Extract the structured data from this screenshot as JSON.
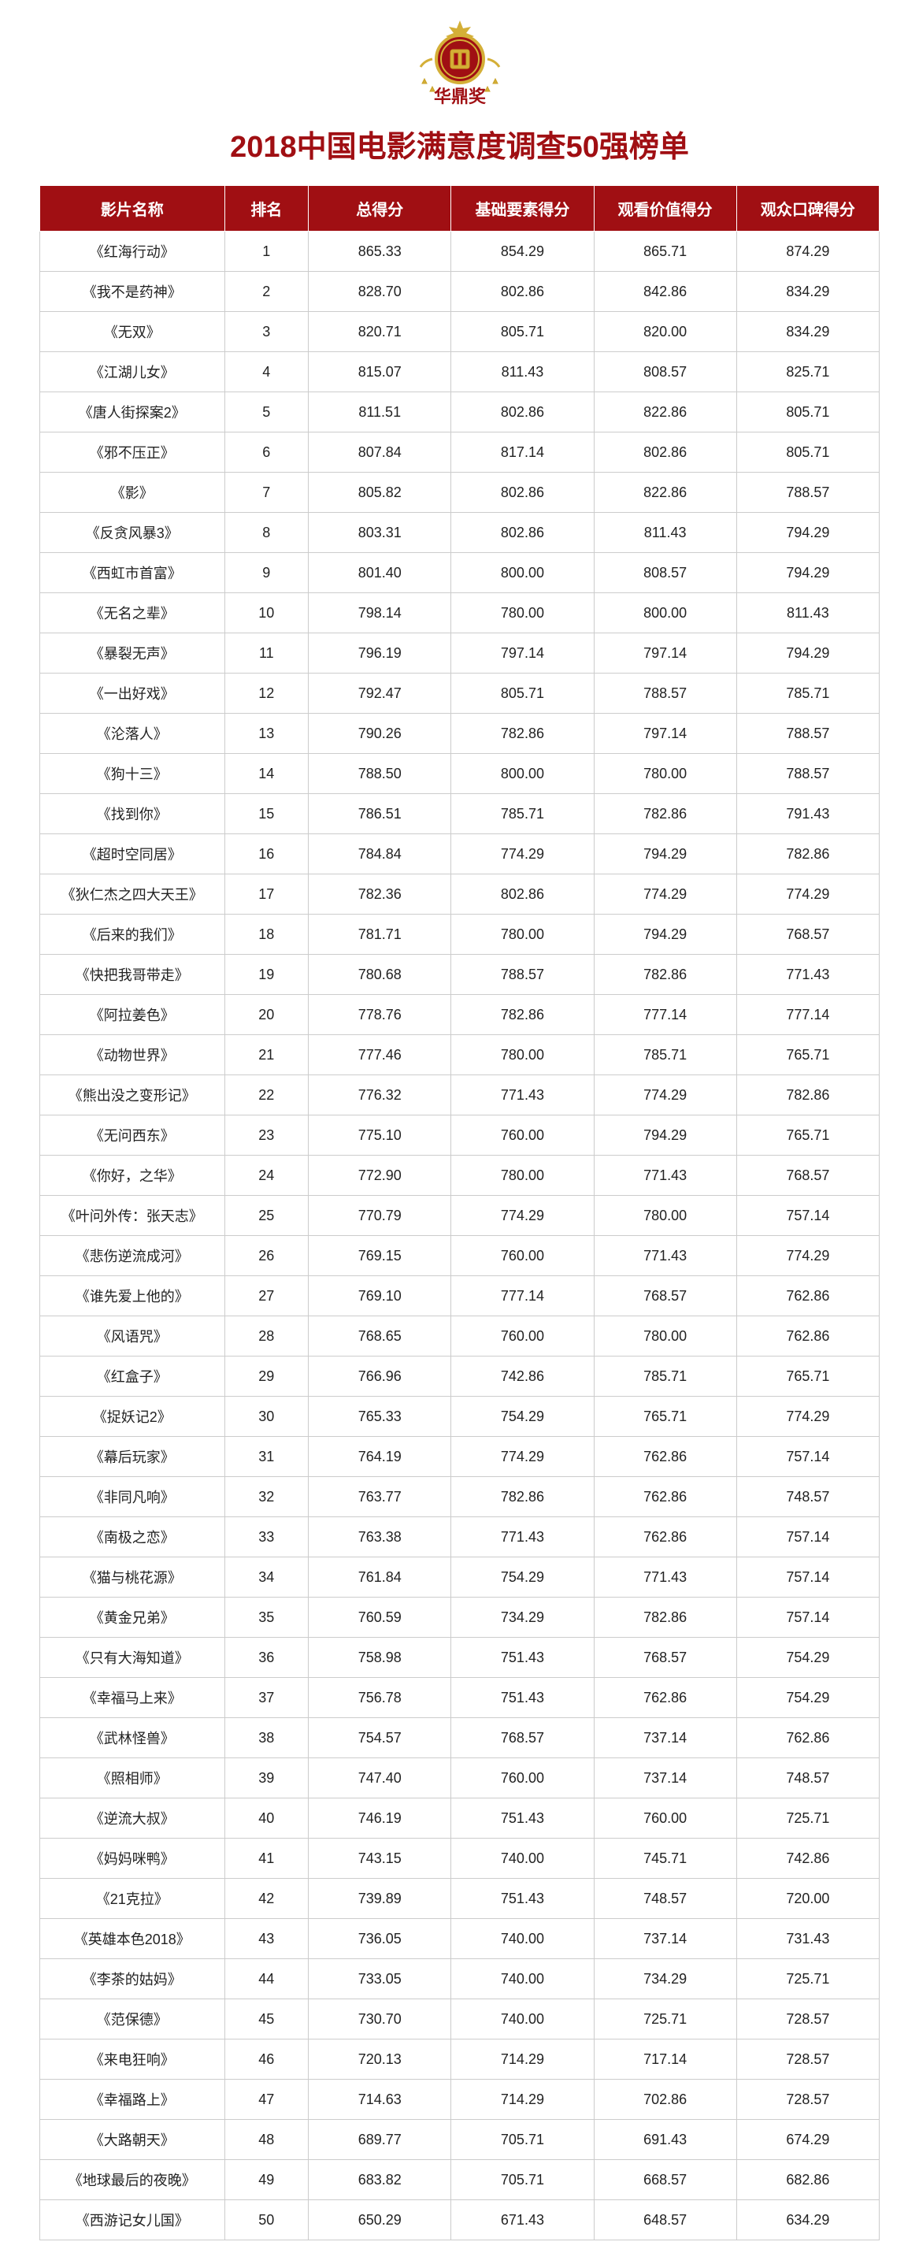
{
  "logo_text": "华鼎奖",
  "title_text": "2018中国电影满意度调查50强榜单",
  "title_color": "#a00f13",
  "header_bg": "#a00f13",
  "header_fg": "#ffffff",
  "cell_border": "#cccccc",
  "body_fg": "#222222",
  "columns": [
    "影片名称",
    "排名",
    "总得分",
    "基础要素得分",
    "观看价值得分",
    "观众口碑得分"
  ],
  "rows": [
    [
      "《红海行动》",
      "1",
      "865.33",
      "854.29",
      "865.71",
      "874.29"
    ],
    [
      "《我不是药神》",
      "2",
      "828.70",
      "802.86",
      "842.86",
      "834.29"
    ],
    [
      "《无双》",
      "3",
      "820.71",
      "805.71",
      "820.00",
      "834.29"
    ],
    [
      "《江湖儿女》",
      "4",
      "815.07",
      "811.43",
      "808.57",
      "825.71"
    ],
    [
      "《唐人街探案2》",
      "5",
      "811.51",
      "802.86",
      "822.86",
      "805.71"
    ],
    [
      "《邪不压正》",
      "6",
      "807.84",
      "817.14",
      "802.86",
      "805.71"
    ],
    [
      "《影》",
      "7",
      "805.82",
      "802.86",
      "822.86",
      "788.57"
    ],
    [
      "《反贪风暴3》",
      "8",
      "803.31",
      "802.86",
      "811.43",
      "794.29"
    ],
    [
      "《西虹市首富》",
      "9",
      "801.40",
      "800.00",
      "808.57",
      "794.29"
    ],
    [
      "《无名之辈》",
      "10",
      "798.14",
      "780.00",
      "800.00",
      "811.43"
    ],
    [
      "《暴裂无声》",
      "11",
      "796.19",
      "797.14",
      "797.14",
      "794.29"
    ],
    [
      "《一出好戏》",
      "12",
      "792.47",
      "805.71",
      "788.57",
      "785.71"
    ],
    [
      "《沦落人》",
      "13",
      "790.26",
      "782.86",
      "797.14",
      "788.57"
    ],
    [
      "《狗十三》",
      "14",
      "788.50",
      "800.00",
      "780.00",
      "788.57"
    ],
    [
      "《找到你》",
      "15",
      "786.51",
      "785.71",
      "782.86",
      "791.43"
    ],
    [
      "《超时空同居》",
      "16",
      "784.84",
      "774.29",
      "794.29",
      "782.86"
    ],
    [
      "《狄仁杰之四大天王》",
      "17",
      "782.36",
      "802.86",
      "774.29",
      "774.29"
    ],
    [
      "《后来的我们》",
      "18",
      "781.71",
      "780.00",
      "794.29",
      "768.57"
    ],
    [
      "《快把我哥带走》",
      "19",
      "780.68",
      "788.57",
      "782.86",
      "771.43"
    ],
    [
      "《阿拉姜色》",
      "20",
      "778.76",
      "782.86",
      "777.14",
      "777.14"
    ],
    [
      "《动物世界》",
      "21",
      "777.46",
      "780.00",
      "785.71",
      "765.71"
    ],
    [
      "《熊出没之变形记》",
      "22",
      "776.32",
      "771.43",
      "774.29",
      "782.86"
    ],
    [
      "《无问西东》",
      "23",
      "775.10",
      "760.00",
      "794.29",
      "765.71"
    ],
    [
      "《你好，之华》",
      "24",
      "772.90",
      "780.00",
      "771.43",
      "768.57"
    ],
    [
      "《叶问外传：张天志》",
      "25",
      "770.79",
      "774.29",
      "780.00",
      "757.14"
    ],
    [
      "《悲伤逆流成河》",
      "26",
      "769.15",
      "760.00",
      "771.43",
      "774.29"
    ],
    [
      "《谁先爱上他的》",
      "27",
      "769.10",
      "777.14",
      "768.57",
      "762.86"
    ],
    [
      "《风语咒》",
      "28",
      "768.65",
      "760.00",
      "780.00",
      "762.86"
    ],
    [
      "《红盒子》",
      "29",
      "766.96",
      "742.86",
      "785.71",
      "765.71"
    ],
    [
      "《捉妖记2》",
      "30",
      "765.33",
      "754.29",
      "765.71",
      "774.29"
    ],
    [
      "《幕后玩家》",
      "31",
      "764.19",
      "774.29",
      "762.86",
      "757.14"
    ],
    [
      "《非同凡响》",
      "32",
      "763.77",
      "782.86",
      "762.86",
      "748.57"
    ],
    [
      "《南极之恋》",
      "33",
      "763.38",
      "771.43",
      "762.86",
      "757.14"
    ],
    [
      "《猫与桃花源》",
      "34",
      "761.84",
      "754.29",
      "771.43",
      "757.14"
    ],
    [
      "《黄金兄弟》",
      "35",
      "760.59",
      "734.29",
      "782.86",
      "757.14"
    ],
    [
      "《只有大海知道》",
      "36",
      "758.98",
      "751.43",
      "768.57",
      "754.29"
    ],
    [
      "《幸福马上来》",
      "37",
      "756.78",
      "751.43",
      "762.86",
      "754.29"
    ],
    [
      "《武林怪兽》",
      "38",
      "754.57",
      "768.57",
      "737.14",
      "762.86"
    ],
    [
      "《照相师》",
      "39",
      "747.40",
      "760.00",
      "737.14",
      "748.57"
    ],
    [
      "《逆流大叔》",
      "40",
      "746.19",
      "751.43",
      "760.00",
      "725.71"
    ],
    [
      "《妈妈咪鸭》",
      "41",
      "743.15",
      "740.00",
      "745.71",
      "742.86"
    ],
    [
      "《21克拉》",
      "42",
      "739.89",
      "751.43",
      "748.57",
      "720.00"
    ],
    [
      "《英雄本色2018》",
      "43",
      "736.05",
      "740.00",
      "737.14",
      "731.43"
    ],
    [
      "《李茶的姑妈》",
      "44",
      "733.05",
      "740.00",
      "734.29",
      "725.71"
    ],
    [
      "《范保德》",
      "45",
      "730.70",
      "740.00",
      "725.71",
      "728.57"
    ],
    [
      "《来电狂响》",
      "46",
      "720.13",
      "714.29",
      "717.14",
      "728.57"
    ],
    [
      "《幸福路上》",
      "47",
      "714.63",
      "714.29",
      "702.86",
      "728.57"
    ],
    [
      "《大路朝天》",
      "48",
      "689.77",
      "705.71",
      "691.43",
      "674.29"
    ],
    [
      "《地球最后的夜晚》",
      "49",
      "683.82",
      "705.71",
      "668.57",
      "682.86"
    ],
    [
      "《西游记女儿国》",
      "50",
      "650.29",
      "671.43",
      "648.57",
      "634.29"
    ]
  ]
}
